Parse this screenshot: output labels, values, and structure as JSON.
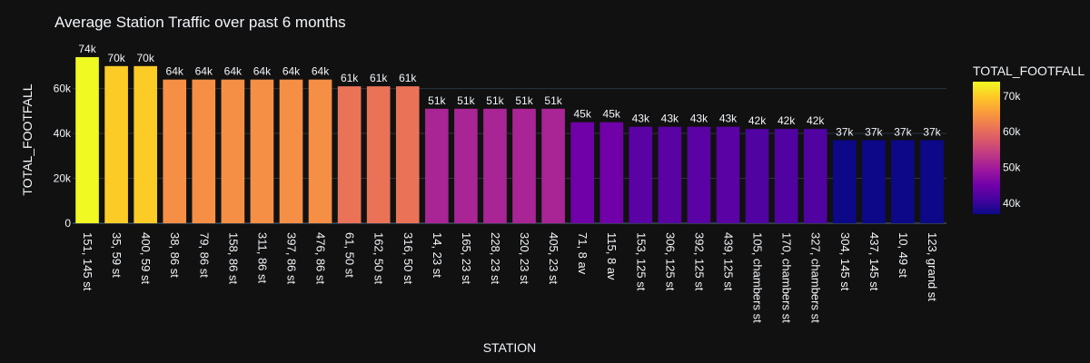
{
  "chart_data": {
    "type": "bar",
    "title": "Average Station Traffic over past 6 months",
    "xlabel": "STATION",
    "ylabel": "TOTAL_FOOTFALL",
    "ylim": [
      0,
      76000
    ],
    "yticks": [
      0,
      20000,
      40000,
      60000
    ],
    "ytick_labels": [
      "0",
      "20k",
      "40k",
      "60k"
    ],
    "grid": true,
    "categories": [
      "151, 145 st",
      "35, 59 st",
      "400, 59 st",
      "38, 86 st",
      "79, 86 st",
      "158, 86 st",
      "311, 86 st",
      "397, 86 st",
      "476, 86 st",
      "61, 50 st",
      "162, 50 st",
      "316, 50 st",
      "14, 23 st",
      "165, 23 st",
      "228, 23 st",
      "320, 23 st",
      "405, 23 st",
      "71, 8 av",
      "115, 8 av",
      "153, 125 st",
      "306, 125 st",
      "392, 125 st",
      "439, 125 st",
      "105, chambers st",
      "170, chambers st",
      "327, chambers st",
      "304, 145 st",
      "437, 145 st",
      "10, 49 st",
      "123, grand st"
    ],
    "values": [
      74000,
      70000,
      70000,
      64000,
      64000,
      64000,
      64000,
      64000,
      64000,
      61000,
      61000,
      61000,
      51000,
      51000,
      51000,
      51000,
      51000,
      45000,
      45000,
      43000,
      43000,
      43000,
      43000,
      42000,
      42000,
      42000,
      37000,
      37000,
      37000,
      37000
    ],
    "data_labels": [
      "74k",
      "70k",
      "70k",
      "64k",
      "64k",
      "64k",
      "64k",
      "64k",
      "64k",
      "61k",
      "61k",
      "61k",
      "51k",
      "51k",
      "51k",
      "51k",
      "51k",
      "45k",
      "45k",
      "43k",
      "43k",
      "43k",
      "43k",
      "42k",
      "42k",
      "42k",
      "37k",
      "37k",
      "37k",
      "37k"
    ],
    "colorbar": {
      "title": "TOTAL_FOOTFALL",
      "range": [
        37000,
        74000
      ],
      "ticks": [
        40000,
        50000,
        60000,
        70000
      ],
      "tick_labels": [
        "40k",
        "50k",
        "60k",
        "70k"
      ],
      "colorscale": [
        "#0d0887",
        "#46039f",
        "#7201a8",
        "#9c179e",
        "#bd3786",
        "#d8576b",
        "#ed7953",
        "#fb9f3a",
        "#fdca26",
        "#f0f921"
      ]
    },
    "background": "#111111",
    "grid_color": "#283442"
  }
}
